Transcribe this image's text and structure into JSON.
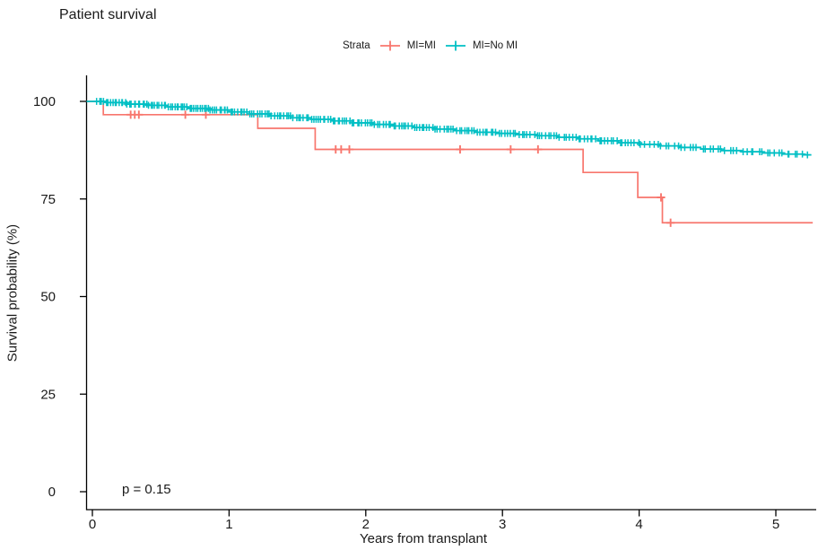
{
  "title": "Patient survival",
  "legend": {
    "title": "Strata",
    "items": [
      {
        "label": "MI=MI",
        "color": "#F8766D",
        "icon": "censor-plus-icon"
      },
      {
        "label": "MI=No MI",
        "color": "#00BFC4",
        "icon": "censor-plus-icon"
      }
    ]
  },
  "axes": {
    "x": {
      "label": "Years from transplant",
      "ticks": [
        0,
        1,
        2,
        3,
        4,
        5
      ]
    },
    "y": {
      "label": "Survival probability (%)",
      "ticks": [
        0,
        25,
        50,
        75,
        100
      ]
    }
  },
  "annotation": {
    "p_value": "p = 0.15"
  },
  "chart_data": {
    "type": "line",
    "subtype": "kaplan-meier-step-with-censor-marks",
    "title": "Patient survival",
    "xlabel": "Years from transplant",
    "ylabel": "Survival probability (%)",
    "xlim": [
      -0.04,
      5.33
    ],
    "ylim": [
      0,
      100
    ],
    "xticks": [
      0,
      1,
      2,
      3,
      4,
      5
    ],
    "yticks": [
      0,
      25,
      50,
      75,
      100
    ],
    "grid": false,
    "legend_position": "top-center",
    "legend_title": "Strata",
    "p_value_text": "p = 0.15",
    "axis_color": "#000000",
    "series": [
      {
        "name": "MI=MI",
        "color": "#F8766D",
        "steps": [
          [
            0,
            100
          ],
          [
            0.08,
            96.6
          ],
          [
            1.21,
            93.1
          ],
          [
            1.63,
            87.7
          ],
          [
            3.59,
            81.8
          ],
          [
            3.99,
            75.4
          ],
          [
            4.17,
            68.9
          ]
        ],
        "end_x": 5.27,
        "censors": [
          [
            0.28,
            96.6
          ],
          [
            0.31,
            96.6
          ],
          [
            0.34,
            96.6
          ],
          [
            0.68,
            96.6
          ],
          [
            0.83,
            96.6
          ],
          [
            1.78,
            87.7
          ],
          [
            1.82,
            87.7
          ],
          [
            1.88,
            87.7
          ],
          [
            2.69,
            87.7
          ],
          [
            3.06,
            87.7
          ],
          [
            3.26,
            87.7
          ],
          [
            4.16,
            75.4
          ],
          [
            4.23,
            68.9
          ]
        ]
      },
      {
        "name": "MI=No MI",
        "color": "#00BFC4",
        "steps": [
          [
            0,
            100
          ],
          [
            0.1,
            99.7
          ],
          [
            0.25,
            99.3
          ],
          [
            0.4,
            99.0
          ],
          [
            0.55,
            98.6
          ],
          [
            0.7,
            98.2
          ],
          [
            0.85,
            97.8
          ],
          [
            1.0,
            97.3
          ],
          [
            1.15,
            96.8
          ],
          [
            1.3,
            96.3
          ],
          [
            1.45,
            95.8
          ],
          [
            1.6,
            95.4
          ],
          [
            1.75,
            95.0
          ],
          [
            1.9,
            94.5
          ],
          [
            2.05,
            94.1
          ],
          [
            2.2,
            93.7
          ],
          [
            2.35,
            93.3
          ],
          [
            2.5,
            92.9
          ],
          [
            2.65,
            92.5
          ],
          [
            2.8,
            92.1
          ],
          [
            2.95,
            91.8
          ],
          [
            3.1,
            91.5
          ],
          [
            3.25,
            91.2
          ],
          [
            3.4,
            90.8
          ],
          [
            3.55,
            90.4
          ],
          [
            3.7,
            89.9
          ],
          [
            3.85,
            89.4
          ],
          [
            4.0,
            89.0
          ],
          [
            4.15,
            88.6
          ],
          [
            4.3,
            88.2
          ],
          [
            4.45,
            87.8
          ],
          [
            4.6,
            87.4
          ],
          [
            4.75,
            87.1
          ],
          [
            4.9,
            86.8
          ],
          [
            5.05,
            86.5
          ],
          [
            5.2,
            86.3
          ]
        ],
        "end_x": 5.26,
        "censor_segments": [
          {
            "from": 0.03,
            "to": 1.0,
            "count": 62
          },
          {
            "from": 1.0,
            "to": 2.0,
            "count": 56
          },
          {
            "from": 2.0,
            "to": 3.0,
            "count": 52
          },
          {
            "from": 3.0,
            "to": 4.0,
            "count": 46
          },
          {
            "from": 4.0,
            "to": 5.24,
            "count": 42
          }
        ]
      }
    ]
  }
}
